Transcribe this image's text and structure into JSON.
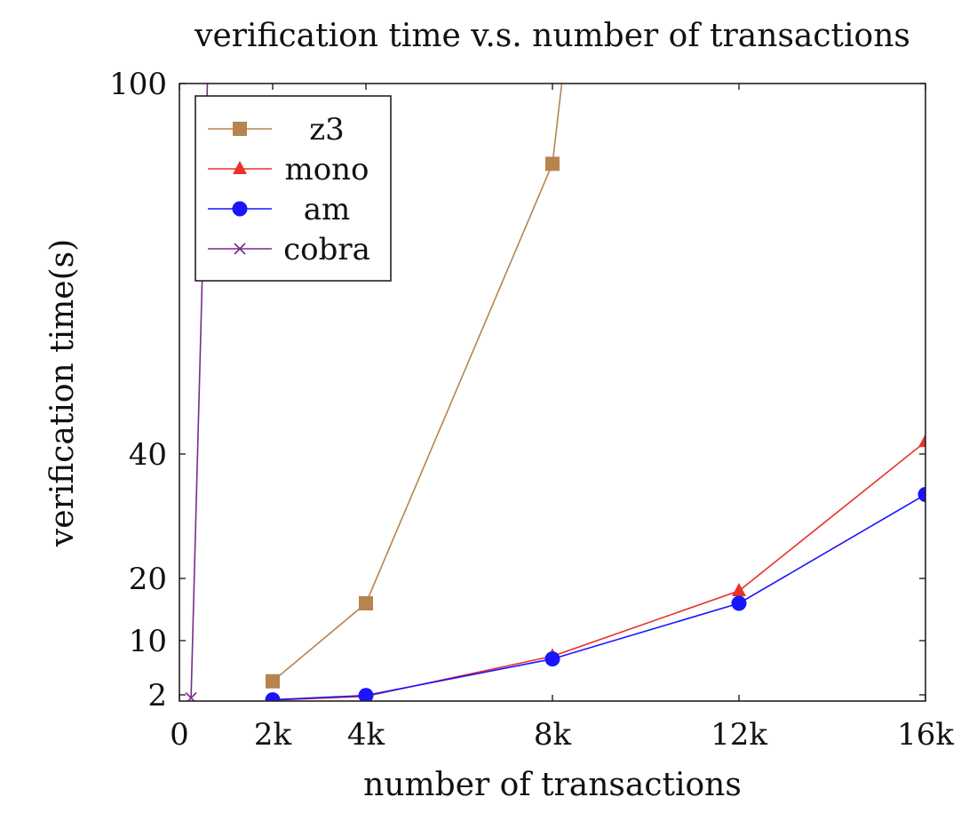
{
  "chart_data": {
    "type": "line",
    "title": "verification time v.s. number of transactions",
    "xlabel": "number of transactions",
    "ylabel": "verification time(s)",
    "xlim": [
      0,
      16
    ],
    "ylim": [
      0,
      100
    ],
    "xticks": [
      0,
      2,
      4,
      8,
      12,
      16
    ],
    "xtick_labels": [
      "0",
      "2k",
      "4k",
      "8k",
      "12k",
      "16k"
    ],
    "yticks": [
      2,
      10,
      20,
      40,
      100
    ],
    "ytick_labels": [
      "2",
      "10",
      "20",
      "40",
      "100"
    ],
    "grid": false,
    "legend_position": "top-left",
    "series": [
      {
        "name": "z3",
        "color": "#b5844f",
        "marker": "square",
        "x": [
          2,
          4,
          8,
          8.2
        ],
        "y": [
          4,
          16,
          87,
          100
        ]
      },
      {
        "name": "mono",
        "color": "#e8322b",
        "marker": "triangle",
        "x": [
          2,
          4,
          8,
          12,
          16
        ],
        "y": [
          0.3,
          1.5,
          7.7,
          18,
          42
        ]
      },
      {
        "name": "am",
        "color": "#1a14ff",
        "marker": "circle",
        "x": [
          2,
          4,
          8,
          12,
          16
        ],
        "y": [
          0.4,
          1.8,
          7.3,
          16,
          33.5
        ]
      },
      {
        "name": "cobra",
        "color": "#7b2a8c",
        "marker": "x",
        "x": [
          0.25,
          0.6
        ],
        "y": [
          1,
          100
        ]
      }
    ]
  }
}
